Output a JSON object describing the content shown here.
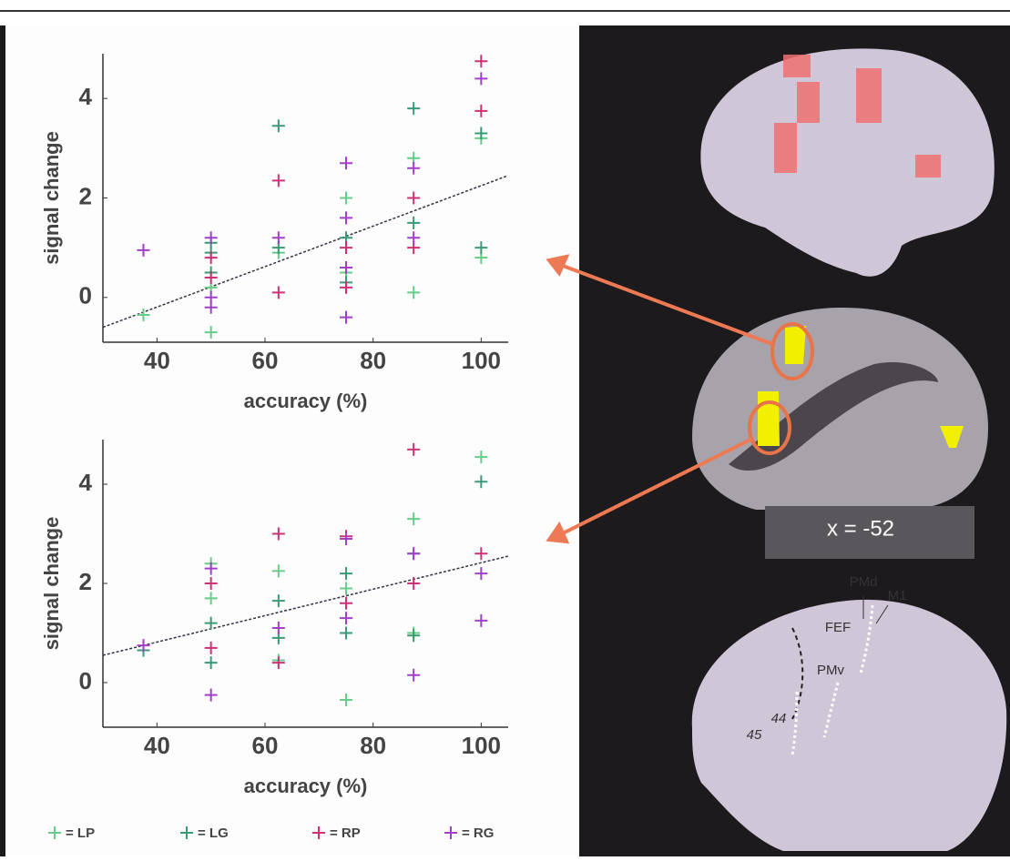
{
  "chart_data": [
    {
      "type": "scatter",
      "xlabel": "accuracy (%)",
      "ylabel": "signal change",
      "xlim": [
        30,
        105
      ],
      "ylim": [
        -0.9,
        4.9
      ],
      "xticks": [
        40,
        60,
        80,
        100
      ],
      "yticks": [
        0,
        2,
        4
      ],
      "trend_line": {
        "x": [
          30,
          105
        ],
        "y": [
          -0.6,
          2.45
        ]
      },
      "series": [
        {
          "color": "#66cc88",
          "x": [
            37.5,
            50,
            50,
            62.5,
            75,
            75,
            87.5,
            87.5,
            100,
            100
          ],
          "values": [
            -0.35,
            -0.7,
            0.2,
            0.9,
            2.0,
            0.5,
            0.1,
            2.8,
            0.8,
            3.2
          ]
        },
        {
          "color": "#3a9a74",
          "x": [
            50,
            50,
            50,
            62.5,
            62.5,
            75,
            75,
            87.5,
            87.5,
            100,
            100
          ],
          "values": [
            0.5,
            0.9,
            1.1,
            3.45,
            1.0,
            1.2,
            0.3,
            3.8,
            1.5,
            3.3,
            1.0
          ]
        },
        {
          "color": "#cc3377",
          "x": [
            50,
            50,
            62.5,
            62.5,
            75,
            75,
            87.5,
            87.5,
            100,
            100
          ],
          "values": [
            0.4,
            0.8,
            2.35,
            0.1,
            1.0,
            0.2,
            2.0,
            1.0,
            3.75,
            4.75
          ]
        },
        {
          "color": "#a040c8",
          "x": [
            37.5,
            50,
            50,
            50,
            62.5,
            75,
            75,
            75,
            75,
            87.5,
            87.5,
            100
          ],
          "values": [
            0.95,
            1.2,
            0.0,
            -0.2,
            1.2,
            2.7,
            1.6,
            0.6,
            -0.4,
            2.6,
            1.2,
            4.4
          ]
        }
      ]
    },
    {
      "type": "scatter",
      "xlabel": "accuracy (%)",
      "ylabel": "signal change",
      "xlim": [
        30,
        105
      ],
      "ylim": [
        -0.9,
        4.9
      ],
      "xticks": [
        40,
        60,
        80,
        100
      ],
      "yticks": [
        0,
        2,
        4
      ],
      "trend_line": {
        "x": [
          30,
          105
        ],
        "y": [
          0.55,
          2.55
        ]
      },
      "series": [
        {
          "color": "#66cc88",
          "x": [
            50,
            50,
            62.5,
            62.5,
            75,
            75,
            87.5,
            87.5,
            100
          ],
          "values": [
            2.4,
            1.7,
            2.25,
            0.45,
            -0.35,
            1.9,
            3.3,
            1.0,
            4.55
          ]
        },
        {
          "color": "#3a9a74",
          "x": [
            37.5,
            50,
            50,
            62.5,
            62.5,
            75,
            75,
            87.5,
            87.5,
            100
          ],
          "values": [
            0.65,
            0.4,
            1.2,
            1.65,
            0.9,
            2.2,
            1.0,
            2.6,
            0.95,
            4.05
          ]
        },
        {
          "color": "#cc3377",
          "x": [
            50,
            50,
            62.5,
            62.5,
            75,
            75,
            87.5,
            87.5,
            100
          ],
          "values": [
            2.0,
            0.7,
            3.0,
            0.4,
            2.95,
            1.6,
            4.7,
            2.0,
            2.6
          ]
        },
        {
          "color": "#a040c8",
          "x": [
            37.5,
            50,
            50,
            62.5,
            75,
            75,
            87.5,
            87.5,
            100,
            100
          ],
          "values": [
            0.75,
            2.3,
            -0.25,
            1.1,
            2.9,
            1.3,
            2.6,
            0.15,
            2.2,
            1.25
          ]
        }
      ]
    }
  ],
  "legend": [
    {
      "label": "= LP",
      "color": "#66cc88"
    },
    {
      "label": "= LG",
      "color": "#3a9a74"
    },
    {
      "label": "= RP",
      "color": "#cc3377"
    },
    {
      "label": "= RG",
      "color": "#a040c8"
    }
  ],
  "brain_labels": {
    "slice": "x = -52",
    "pmd": "PMd",
    "m1": "M1",
    "fef": "FEF",
    "pmv": "PMv",
    "ba44": "44",
    "ba45": "45"
  }
}
